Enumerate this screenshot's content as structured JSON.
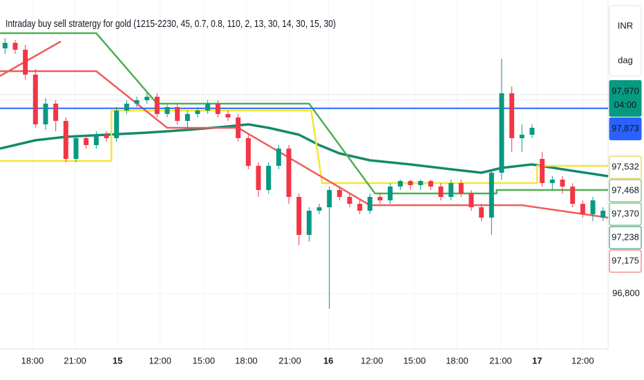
{
  "chart_data": {
    "type": "candlestick",
    "title": "Intraday buy sell stratergy for gold (1215-2230, 45, 0.7, 0.8, 110, 2, 13, 30, 14, 30, 15, 30)",
    "currency": "INR",
    "interval": "dag",
    "xlim": [
      -0.5,
      59.5
    ],
    "ylim": [
      96500,
      98500
    ],
    "xticks": [
      {
        "value": 2.7,
        "label": "18:00"
      },
      {
        "value": 6.9,
        "label": "21:00"
      },
      {
        "value": 11.1,
        "label": "15"
      },
      {
        "value": 15.3,
        "label": "12:00"
      },
      {
        "value": 19.6,
        "label": "15:00"
      },
      {
        "value": 23.8,
        "label": "18:00"
      },
      {
        "value": 28.1,
        "label": "21:00"
      },
      {
        "value": 31.9,
        "label": "16"
      },
      {
        "value": 36.2,
        "label": "12:00"
      },
      {
        "value": 40.4,
        "label": "15:00"
      },
      {
        "value": 44.6,
        "label": "18:00"
      },
      {
        "value": 48.9,
        "label": "21:00"
      },
      {
        "value": 52.5,
        "label": "17"
      },
      {
        "value": 57,
        "label": "12:00"
      }
    ],
    "yticks": [
      {
        "value": 96800,
        "label": "96,800"
      }
    ],
    "up_color": "#089981",
    "down_color": "#f23645",
    "open": [
      98220,
      98252,
      98212,
      98068,
      97780,
      97900,
      97800,
      97580,
      97700,
      97660,
      97720,
      97700,
      97860,
      97900,
      97920,
      97940,
      97840,
      97880,
      97800,
      97840,
      97860,
      97900,
      97840,
      97820,
      97700,
      97540,
      97400,
      97540,
      97640,
      97360,
      97140,
      97280,
      97300,
      97400,
      97360,
      97320,
      97280,
      97360,
      97340,
      97420,
      97452,
      97428,
      97452,
      97420,
      97360,
      97440,
      97380,
      97300,
      97240,
      97500,
      97960,
      97700,
      97720,
      97580,
      97440,
      97460,
      97420,
      97320,
      97260,
      97240
    ],
    "high": [
      98280,
      98268,
      98240,
      98100,
      97932,
      97920,
      97820,
      97720,
      97720,
      97740,
      97740,
      97880,
      97920,
      97940,
      97960,
      97960,
      97900,
      97900,
      97860,
      97880,
      97920,
      97920,
      97860,
      97840,
      97720,
      97560,
      97560,
      97660,
      97660,
      97380,
      97300,
      97320,
      97420,
      97420,
      97380,
      97340,
      97380,
      97380,
      97440,
      97460,
      97460,
      97460,
      97460,
      97440,
      97460,
      97460,
      97400,
      97320,
      97520,
      98160,
      98000,
      97780,
      97780,
      97620,
      97480,
      97480,
      97440,
      97340,
      97360,
      97300
    ],
    "low": [
      98188,
      98188,
      98040,
      97760,
      97748,
      97740,
      97560,
      97560,
      97640,
      97640,
      97680,
      97680,
      97840,
      97880,
      97900,
      97820,
      97820,
      97780,
      97760,
      97820,
      97840,
      97820,
      97800,
      97680,
      97520,
      97360,
      97380,
      97520,
      97320,
      97080,
      97100,
      97260,
      96712,
      97340,
      97300,
      97260,
      97260,
      97320,
      97320,
      97400,
      97400,
      97400,
      97400,
      97340,
      97340,
      97360,
      97280,
      97220,
      97140,
      97460,
      97620,
      97620,
      97700,
      97420,
      97400,
      97380,
      97300,
      97240,
      97220,
      97220
    ],
    "close": [
      98252,
      98212,
      98068,
      97780,
      97900,
      97800,
      97580,
      97700,
      97660,
      97720,
      97700,
      97860,
      97900,
      97920,
      97940,
      97840,
      97880,
      97800,
      97840,
      97860,
      97900,
      97840,
      97820,
      97700,
      97540,
      97400,
      97540,
      97640,
      97360,
      97140,
      97280,
      97300,
      97400,
      97360,
      97320,
      97280,
      97360,
      97340,
      97420,
      97452,
      97428,
      97452,
      97420,
      97360,
      97440,
      97380,
      97300,
      97240,
      97500,
      97960,
      97700,
      97720,
      97760,
      97440,
      97460,
      97420,
      97320,
      97260,
      97340,
      97280
    ],
    "lines": [
      {
        "color": "#138a6a",
        "x": [
          -0.5,
          3,
          6,
          10,
          14,
          18,
          22,
          24,
          26,
          29,
          31,
          33,
          36,
          40,
          44,
          47,
          49,
          52,
          55,
          59.5
        ],
        "values": [
          97640,
          97688,
          97708,
          97720,
          97732,
          97748,
          97768,
          97780,
          97760,
          97720,
          97660,
          97612,
          97572,
          97548,
          97520,
          97500,
          97528,
          97548,
          97520,
          97480
        ]
      },
      {
        "color": "#f5e533",
        "x": [
          -0.5,
          10.5,
          10.5,
          30.2,
          31.3,
          52.5,
          52.5,
          59.5
        ],
        "values": [
          97568,
          97568,
          97860,
          97860,
          97440,
          97440,
          97540,
          97540
        ]
      },
      {
        "color": "#4caf50",
        "x": [
          -0.5,
          9,
          15,
          30,
          36.5,
          48.5,
          48.5,
          59.5
        ],
        "values": [
          98308,
          98308,
          97900,
          97900,
          97380,
          97380,
          97400,
          97400
        ]
      },
      {
        "color": "#f05a5a",
        "x": [
          -0.5,
          9,
          16,
          23,
          36,
          51,
          59.5
        ],
        "values": [
          98088,
          98088,
          97760,
          97760,
          97312,
          97312,
          97240
        ]
      },
      {
        "color": "#f05a5a",
        "x": [
          -0.5,
          5.5
        ],
        "values": [
          98060,
          98260
        ]
      }
    ],
    "price_tags": [
      {
        "value": 97970,
        "label": "97,970",
        "sub": "04:00",
        "color": "#089981",
        "filled": true
      },
      {
        "value": 97873,
        "label": "97,873",
        "color": "#2962ff",
        "filled": true,
        "line": true
      },
      {
        "value": 97532,
        "label": "97,532",
        "color": "#e8c41a",
        "filled": false
      },
      {
        "value": 97468,
        "label": "97,468",
        "color": "#4caf50",
        "filled": false
      },
      {
        "value": 97370,
        "label": "97,370",
        "color": "#4caf50",
        "filled": false
      },
      {
        "value": 97238,
        "label": "97,238",
        "color": "#138a6a",
        "filled": false
      },
      {
        "value": 97175,
        "label": "97,175",
        "color": "#f05a5a",
        "filled": false
      }
    ]
  }
}
